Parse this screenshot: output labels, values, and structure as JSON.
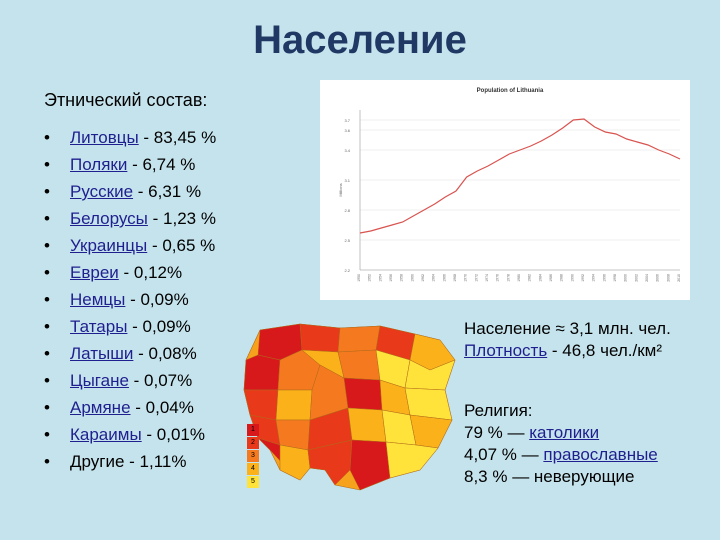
{
  "title": "Население",
  "subtitle": "Этнический состав:",
  "ethnic_groups": [
    {
      "bullet": "•",
      "name": "Литовцы",
      "value": " - 83,45 %",
      "link": true
    },
    {
      "bullet": "•",
      "name": "Поляки",
      "value": " - 6,74 %",
      "link": true
    },
    {
      "bullet": "•",
      "name": "Русские",
      "value": " - 6,31 %",
      "link": true
    },
    {
      "bullet": "•",
      "name": "Белорусы",
      "value": " - 1,23 %",
      "link": true
    },
    {
      "bullet": "•",
      "name": "Украинцы",
      "value": " - 0,65 %",
      "link": true
    },
    {
      "bullet": "•",
      "name": "Евреи",
      "value": " - 0,12%",
      "link": true
    },
    {
      "bullet": "•",
      "name": "Немцы",
      "value": " - 0,09%",
      "link": true
    },
    {
      "bullet": "•",
      "name": "Татары",
      "value": " - 0,09%",
      "link": true
    },
    {
      "bullet": "•",
      "name": "Латыши",
      "value": " - 0,08%",
      "link": true
    },
    {
      "bullet": "•",
      "name": "Цыгане",
      "value": " - 0,07%",
      "link": true
    },
    {
      "bullet": "•",
      "name": "Армяне",
      "value": " - 0,04%",
      "link": true
    },
    {
      "bullet": "•",
      "name": "Караимы",
      "value": " - 0,01%",
      "link": true
    },
    {
      "bullet": "•",
      "name": "Другие",
      "value": " - 1,11%",
      "link": false
    }
  ],
  "population": {
    "label": "Население ≈ 3,1 млн. чел.",
    "density_link": "Плотность",
    "density_value": " - 46,8 чел./км²"
  },
  "religion": {
    "label": "Религия:",
    "catholic_prefix": "79 %  — ",
    "catholic_link": "католики",
    "orthodox_prefix": "4,07 % — ",
    "orthodox_link": "православные",
    "nonbelievers": "8,3 % — неверующие"
  },
  "chart_data": {
    "type": "line",
    "title": "Population of Lithuania",
    "ylabel": "Millions",
    "ylim": [
      2.2,
      3.8
    ],
    "yticks": [
      "2.2",
      "2.5",
      "2.8",
      "3.1",
      "3.4",
      "3.6",
      "3.7"
    ],
    "x": [
      1950,
      1952,
      1954,
      1956,
      1958,
      1960,
      1962,
      1964,
      1966,
      1968,
      1970,
      1972,
      1974,
      1976,
      1978,
      1980,
      1982,
      1984,
      1986,
      1988,
      1990,
      1992,
      1994,
      1996,
      1998,
      2000,
      2002,
      2004,
      2006,
      2008,
      2010
    ],
    "xtick_labels": [
      "1950",
      "1952",
      "1954",
      "1956",
      "1958",
      "1960",
      "1962",
      "1964",
      "1966",
      "1968",
      "1970",
      "1972",
      "1974",
      "1976",
      "1978",
      "1980",
      "1982",
      "1984",
      "1986",
      "1988",
      "1990",
      "1992",
      "1994",
      "1996",
      "1998",
      "2000",
      "2002",
      "2004",
      "2006",
      "2008",
      "2010"
    ],
    "series": [
      {
        "values": [
          2.57,
          2.59,
          2.62,
          2.65,
          2.68,
          2.74,
          2.8,
          2.86,
          2.93,
          2.99,
          3.13,
          3.19,
          3.24,
          3.3,
          3.36,
          3.4,
          3.44,
          3.49,
          3.55,
          3.62,
          3.7,
          3.71,
          3.63,
          3.58,
          3.56,
          3.51,
          3.48,
          3.45,
          3.4,
          3.36,
          3.31
        ],
        "color": "#d9534f"
      }
    ]
  },
  "map_legend": [
    "1",
    "2",
    "3",
    "4",
    "5"
  ],
  "colors": {
    "background": "#c5e3ec",
    "title": "#1f3864",
    "link": "#1f1f8f",
    "map_1": "#d7191c",
    "map_2": "#e8391a",
    "map_3": "#f57a1f",
    "map_4": "#fbb11a",
    "map_5": "#ffe23a"
  }
}
